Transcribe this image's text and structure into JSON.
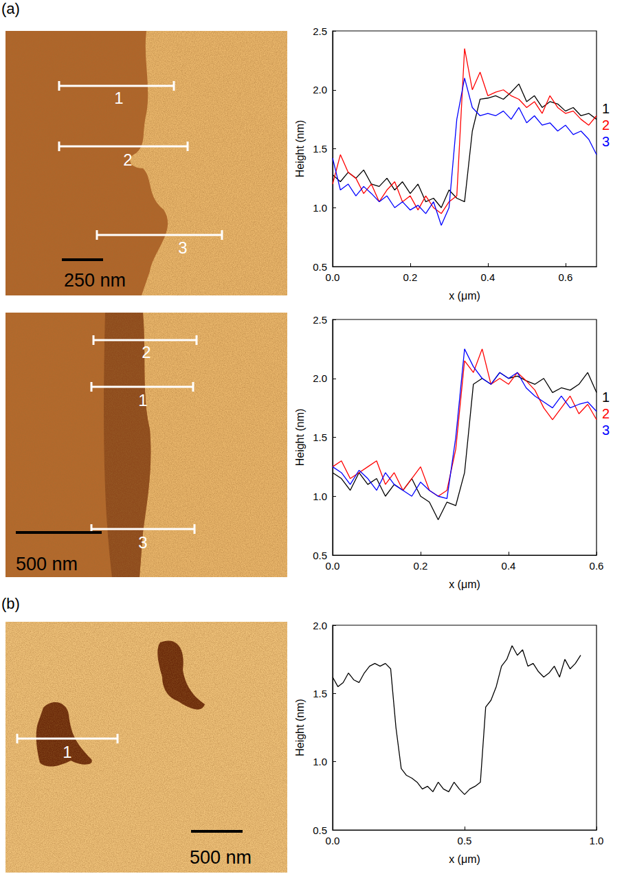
{
  "panel_labels": [
    "(a)",
    "(b)"
  ],
  "images": [
    {
      "scale_bar": "250 nm",
      "profiles": [
        "1",
        "2",
        "3"
      ]
    },
    {
      "scale_bar": "500 nm",
      "profiles": [
        "2",
        "1",
        "3"
      ]
    },
    {
      "scale_bar": "500 nm",
      "profiles": [
        "1"
      ]
    }
  ],
  "chart_data": [
    {
      "type": "line",
      "xlabel": "x (μm)",
      "ylabel": "Height (nm)",
      "grid": false,
      "xlim": [
        0,
        0.68
      ],
      "ylim": [
        0.5,
        2.5
      ],
      "xticks": [
        {
          "value": 0,
          "label": "0.0"
        },
        0.2,
        0.4,
        0.6
      ],
      "yticks": [
        0.5,
        {
          "value": 1,
          "label": "1.0"
        },
        1.5,
        {
          "value": 2,
          "label": "2.0"
        },
        2.5
      ],
      "x": [
        0,
        0.02,
        0.04,
        0.06,
        0.08,
        0.1,
        0.12,
        0.14,
        0.16,
        0.18,
        0.2,
        0.22,
        0.24,
        0.26,
        0.28,
        0.3,
        0.32,
        0.34,
        0.36,
        0.38,
        0.4,
        0.42,
        0.44,
        0.46,
        0.48,
        0.5,
        0.52,
        0.54,
        0.56,
        0.58,
        0.6,
        0.62,
        0.64,
        0.66,
        0.68
      ],
      "series": [
        {
          "name": "1",
          "color": "#000000",
          "values": [
            1.28,
            1.22,
            1.3,
            1.25,
            1.32,
            1.2,
            1.18,
            1.25,
            1.15,
            1.22,
            1.12,
            1.2,
            1.05,
            1.08,
            1.0,
            1.15,
            1.08,
            1.05,
            1.65,
            1.92,
            1.93,
            1.95,
            1.92,
            1.98,
            2.05,
            1.9,
            1.95,
            1.85,
            1.9,
            1.88,
            1.82,
            1.85,
            1.78,
            1.8,
            1.75
          ]
        },
        {
          "name": "2",
          "color": "#ff0000",
          "values": [
            1.2,
            1.45,
            1.3,
            1.25,
            1.12,
            1.2,
            1.05,
            1.15,
            1.22,
            1.05,
            1.1,
            0.98,
            1.1,
            1.0,
            0.95,
            1.05,
            1.1,
            2.35,
            2.0,
            2.15,
            1.95,
            1.98,
            2.0,
            1.95,
            1.92,
            1.85,
            1.9,
            1.8,
            1.95,
            1.85,
            1.8,
            1.82,
            1.75,
            1.7,
            1.78
          ]
        },
        {
          "name": "3",
          "color": "#0000ff",
          "values": [
            1.42,
            1.15,
            1.2,
            1.1,
            1.18,
            1.12,
            1.05,
            1.1,
            1.0,
            1.05,
            0.98,
            1.02,
            0.95,
            1.05,
            0.85,
            1.0,
            1.75,
            2.1,
            1.85,
            1.78,
            1.8,
            1.78,
            1.82,
            1.75,
            1.85,
            1.72,
            1.78,
            1.7,
            1.72,
            1.65,
            1.7,
            1.62,
            1.65,
            1.58,
            1.45
          ]
        }
      ]
    },
    {
      "type": "line",
      "xlabel": "x (μm)",
      "ylabel": "Height (nm)",
      "grid": false,
      "xlim": [
        0,
        0.6
      ],
      "ylim": [
        0.5,
        2.5
      ],
      "xticks": [
        {
          "value": 0,
          "label": "0.0"
        },
        0.2,
        0.4,
        0.6
      ],
      "yticks": [
        0.5,
        {
          "value": 1,
          "label": "1.0"
        },
        1.5,
        {
          "value": 2,
          "label": "2.0"
        },
        2.5
      ],
      "x": [
        0,
        0.02,
        0.04,
        0.06,
        0.08,
        0.1,
        0.12,
        0.14,
        0.16,
        0.18,
        0.2,
        0.22,
        0.24,
        0.26,
        0.28,
        0.3,
        0.32,
        0.34,
        0.36,
        0.38,
        0.4,
        0.42,
        0.44,
        0.46,
        0.48,
        0.5,
        0.52,
        0.54,
        0.56,
        0.58,
        0.6
      ],
      "series": [
        {
          "name": "1",
          "color": "#000000",
          "values": [
            1.2,
            1.15,
            1.05,
            1.2,
            1.1,
            1.15,
            1.0,
            1.1,
            1.05,
            1.15,
            1.0,
            0.95,
            0.8,
            0.95,
            0.92,
            1.2,
            1.95,
            2.0,
            1.95,
            2.05,
            2.0,
            2.02,
            1.98,
            1.95,
            2.0,
            1.88,
            1.92,
            1.9,
            1.95,
            2.05,
            1.88
          ]
        },
        {
          "name": "2",
          "color": "#ff0000",
          "values": [
            1.25,
            1.3,
            1.15,
            1.2,
            1.25,
            1.3,
            1.1,
            1.2,
            1.05,
            1.15,
            1.25,
            1.05,
            1.0,
            1.05,
            1.4,
            2.15,
            2.05,
            2.25,
            1.95,
            2.0,
            1.95,
            2.05,
            1.98,
            1.9,
            1.75,
            1.65,
            1.75,
            1.85,
            1.7,
            1.78,
            1.65
          ]
        },
        {
          "name": "3",
          "color": "#0000ff",
          "values": [
            1.25,
            1.2,
            1.1,
            1.22,
            1.15,
            1.05,
            1.2,
            1.1,
            1.05,
            1.0,
            1.12,
            1.05,
            1.0,
            0.98,
            1.5,
            2.25,
            2.1,
            2.0,
            1.95,
            2.05,
            2.0,
            2.05,
            1.92,
            1.85,
            1.8,
            1.75,
            1.85,
            1.75,
            1.78,
            1.8,
            1.72
          ]
        }
      ]
    },
    {
      "type": "line",
      "xlabel": "x (μm)",
      "ylabel": "Height (nm)",
      "grid": false,
      "xlim": [
        0,
        1.0
      ],
      "ylim": [
        0.5,
        2.0
      ],
      "xticks": [
        {
          "value": 0,
          "label": "0.0"
        },
        0.5,
        {
          "value": 1,
          "label": "1.0"
        }
      ],
      "yticks": [
        0.5,
        {
          "value": 1,
          "label": "1.0"
        },
        1.5,
        {
          "value": 2,
          "label": "2.0"
        }
      ],
      "x": [
        0,
        0.02,
        0.04,
        0.06,
        0.08,
        0.1,
        0.12,
        0.14,
        0.16,
        0.18,
        0.2,
        0.22,
        0.24,
        0.26,
        0.28,
        0.3,
        0.32,
        0.34,
        0.36,
        0.38,
        0.4,
        0.42,
        0.44,
        0.46,
        0.48,
        0.5,
        0.52,
        0.54,
        0.56,
        0.58,
        0.6,
        0.62,
        0.64,
        0.66,
        0.68,
        0.7,
        0.72,
        0.74,
        0.76,
        0.78,
        0.8,
        0.82,
        0.84,
        0.86,
        0.88,
        0.9,
        0.92,
        0.94
      ],
      "series": [
        {
          "color": "#000000",
          "values": [
            1.62,
            1.55,
            1.58,
            1.65,
            1.6,
            1.58,
            1.65,
            1.7,
            1.72,
            1.7,
            1.72,
            1.68,
            1.25,
            0.95,
            0.9,
            0.88,
            0.85,
            0.8,
            0.82,
            0.78,
            0.85,
            0.8,
            0.78,
            0.85,
            0.8,
            0.76,
            0.8,
            0.82,
            0.85,
            1.4,
            1.45,
            1.55,
            1.7,
            1.75,
            1.85,
            1.78,
            1.82,
            1.7,
            1.72,
            1.66,
            1.62,
            1.65,
            1.7,
            1.62,
            1.75,
            1.68,
            1.72,
            1.78
          ]
        }
      ]
    }
  ]
}
